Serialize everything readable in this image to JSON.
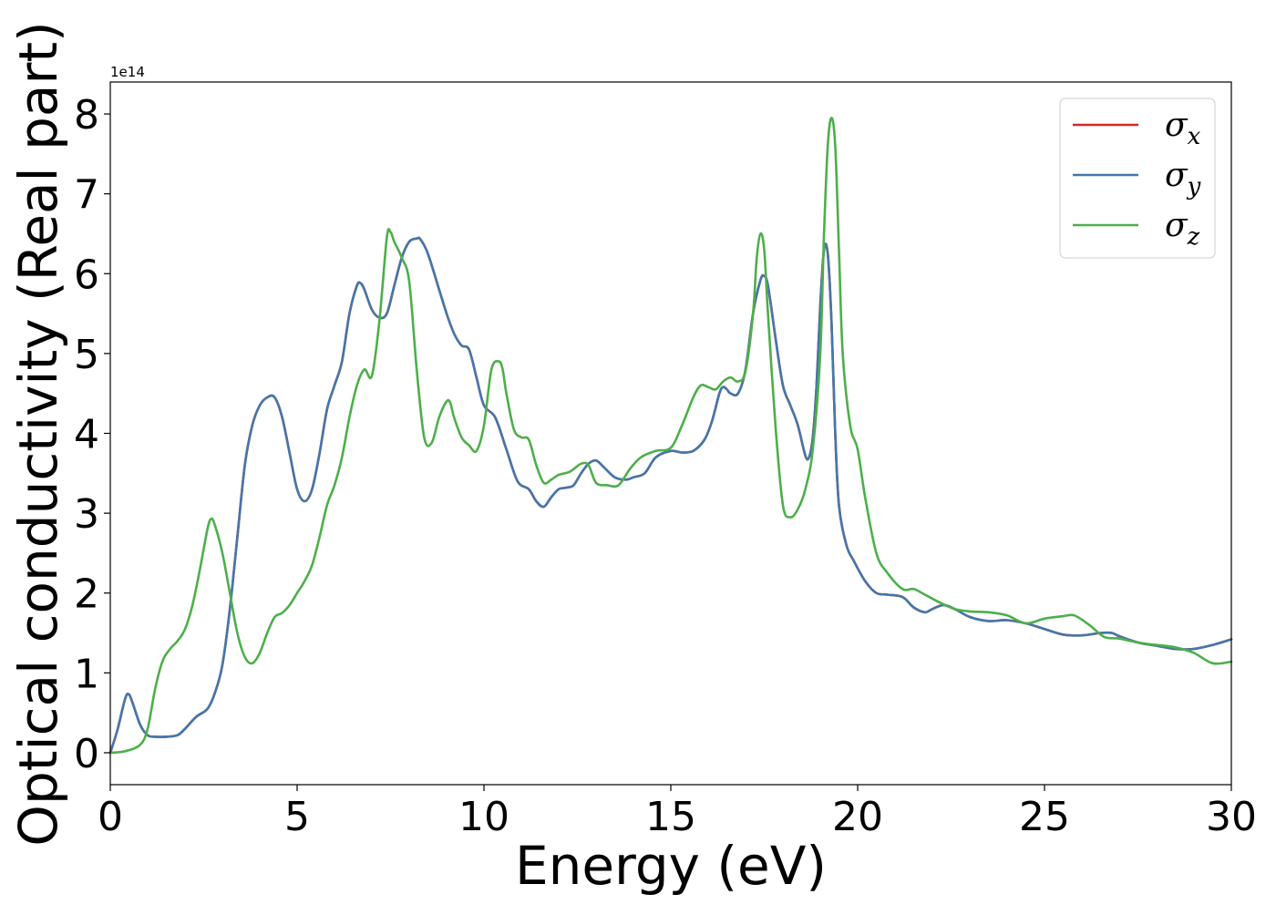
{
  "chart_data": {
    "type": "line",
    "title": "",
    "xlabel": "Energy (eV)",
    "ylabel": "Optical conductivity (Real part)",
    "y_offset_label": "1e14",
    "xlim": [
      0,
      30
    ],
    "ylim": [
      -0.4,
      8.4
    ],
    "xticks": [
      0,
      5,
      10,
      15,
      20,
      25,
      30
    ],
    "yticks": [
      0,
      1,
      2,
      3,
      4,
      5,
      6,
      7,
      8
    ],
    "grid": false,
    "legend_position": "top-right",
    "series": [
      {
        "name": "σx",
        "label_base": "σ",
        "label_sub": "x",
        "color": "#d62728",
        "x": [
          0,
          0.2,
          0.4,
          0.5,
          0.6,
          0.8,
          1.0,
          1.2,
          1.5,
          1.8,
          2.0,
          2.3,
          2.6,
          2.8,
          3.0,
          3.2,
          3.4,
          3.6,
          3.8,
          4.0,
          4.2,
          4.4,
          4.6,
          4.8,
          5.0,
          5.2,
          5.4,
          5.6,
          5.8,
          6.0,
          6.2,
          6.4,
          6.6,
          6.7,
          6.8,
          7.0,
          7.2,
          7.4,
          7.6,
          7.8,
          8.0,
          8.2,
          8.3,
          8.5,
          8.8,
          9.0,
          9.2,
          9.4,
          9.6,
          9.8,
          10.0,
          10.3,
          10.6,
          10.9,
          11.2,
          11.4,
          11.6,
          11.8,
          12.0,
          12.2,
          12.4,
          12.6,
          12.8,
          13.0,
          13.2,
          13.5,
          13.8,
          14.0,
          14.3,
          14.6,
          15.0,
          15.3,
          15.6,
          15.9,
          16.1,
          16.3,
          16.4,
          16.5,
          16.6,
          16.8,
          17.0,
          17.2,
          17.4,
          17.5,
          17.6,
          17.8,
          18.0,
          18.2,
          18.4,
          18.6,
          18.7,
          18.8,
          18.9,
          19.0,
          19.1,
          19.2,
          19.3,
          19.4,
          19.5,
          19.7,
          19.9,
          20.2,
          20.5,
          20.8,
          21.2,
          21.5,
          21.8,
          22.0,
          22.3,
          22.6,
          23.0,
          23.5,
          24.0,
          24.5,
          25.0,
          25.5,
          26.0,
          26.5,
          26.8,
          27.0,
          27.5,
          28.0,
          28.5,
          29.0,
          29.5,
          30.0
        ],
        "y": [
          0.0,
          0.3,
          0.68,
          0.73,
          0.62,
          0.35,
          0.22,
          0.2,
          0.2,
          0.22,
          0.3,
          0.45,
          0.55,
          0.75,
          1.1,
          1.8,
          2.7,
          3.6,
          4.1,
          4.35,
          4.45,
          4.45,
          4.2,
          3.75,
          3.3,
          3.15,
          3.3,
          3.75,
          4.3,
          4.6,
          4.9,
          5.5,
          5.85,
          5.88,
          5.8,
          5.55,
          5.45,
          5.5,
          5.85,
          6.2,
          6.4,
          6.44,
          6.43,
          6.25,
          5.8,
          5.5,
          5.25,
          5.1,
          5.05,
          4.7,
          4.35,
          4.2,
          3.8,
          3.4,
          3.3,
          3.15,
          3.08,
          3.2,
          3.3,
          3.32,
          3.35,
          3.5,
          3.62,
          3.66,
          3.58,
          3.45,
          3.42,
          3.45,
          3.5,
          3.7,
          3.78,
          3.76,
          3.78,
          3.92,
          4.15,
          4.5,
          4.58,
          4.55,
          4.5,
          4.5,
          4.8,
          5.5,
          5.92,
          5.97,
          5.85,
          5.2,
          4.6,
          4.35,
          4.1,
          3.72,
          3.7,
          3.95,
          4.6,
          5.6,
          6.3,
          6.25,
          5.4,
          4.0,
          3.1,
          2.6,
          2.4,
          2.15,
          2.0,
          1.98,
          1.95,
          1.82,
          1.76,
          1.8,
          1.85,
          1.8,
          1.7,
          1.65,
          1.66,
          1.62,
          1.55,
          1.48,
          1.47,
          1.5,
          1.5,
          1.46,
          1.38,
          1.34,
          1.3,
          1.3,
          1.35,
          1.42
        ]
      },
      {
        "name": "σy",
        "label_base": "σ",
        "label_sub": "y",
        "color": "#4477aa",
        "x": [
          0,
          0.2,
          0.4,
          0.5,
          0.6,
          0.8,
          1.0,
          1.2,
          1.5,
          1.8,
          2.0,
          2.3,
          2.6,
          2.8,
          3.0,
          3.2,
          3.4,
          3.6,
          3.8,
          4.0,
          4.2,
          4.4,
          4.6,
          4.8,
          5.0,
          5.2,
          5.4,
          5.6,
          5.8,
          6.0,
          6.2,
          6.4,
          6.6,
          6.7,
          6.8,
          7.0,
          7.2,
          7.4,
          7.6,
          7.8,
          8.0,
          8.2,
          8.3,
          8.5,
          8.8,
          9.0,
          9.2,
          9.4,
          9.6,
          9.8,
          10.0,
          10.3,
          10.6,
          10.9,
          11.2,
          11.4,
          11.6,
          11.8,
          12.0,
          12.2,
          12.4,
          12.6,
          12.8,
          13.0,
          13.2,
          13.5,
          13.8,
          14.0,
          14.3,
          14.6,
          15.0,
          15.3,
          15.6,
          15.9,
          16.1,
          16.3,
          16.4,
          16.5,
          16.6,
          16.8,
          17.0,
          17.2,
          17.4,
          17.5,
          17.6,
          17.8,
          18.0,
          18.2,
          18.4,
          18.6,
          18.7,
          18.8,
          18.9,
          19.0,
          19.1,
          19.2,
          19.3,
          19.4,
          19.5,
          19.7,
          19.9,
          20.2,
          20.5,
          20.8,
          21.2,
          21.5,
          21.8,
          22.0,
          22.3,
          22.6,
          23.0,
          23.5,
          24.0,
          24.5,
          25.0,
          25.5,
          26.0,
          26.5,
          26.8,
          27.0,
          27.5,
          28.0,
          28.5,
          29.0,
          29.5,
          30.0
        ],
        "y": [
          0.0,
          0.3,
          0.68,
          0.73,
          0.62,
          0.35,
          0.22,
          0.2,
          0.2,
          0.22,
          0.3,
          0.45,
          0.55,
          0.75,
          1.1,
          1.8,
          2.7,
          3.6,
          4.1,
          4.35,
          4.45,
          4.45,
          4.2,
          3.75,
          3.3,
          3.15,
          3.3,
          3.75,
          4.3,
          4.6,
          4.9,
          5.5,
          5.85,
          5.88,
          5.8,
          5.55,
          5.45,
          5.5,
          5.85,
          6.2,
          6.4,
          6.44,
          6.43,
          6.25,
          5.8,
          5.5,
          5.25,
          5.1,
          5.05,
          4.7,
          4.35,
          4.2,
          3.8,
          3.4,
          3.3,
          3.15,
          3.08,
          3.2,
          3.3,
          3.32,
          3.35,
          3.5,
          3.62,
          3.66,
          3.58,
          3.45,
          3.42,
          3.45,
          3.5,
          3.7,
          3.78,
          3.76,
          3.78,
          3.92,
          4.15,
          4.5,
          4.58,
          4.55,
          4.5,
          4.5,
          4.8,
          5.5,
          5.92,
          5.97,
          5.85,
          5.2,
          4.6,
          4.35,
          4.1,
          3.72,
          3.7,
          3.95,
          4.6,
          5.6,
          6.3,
          6.25,
          5.4,
          4.0,
          3.1,
          2.6,
          2.4,
          2.15,
          2.0,
          1.98,
          1.95,
          1.82,
          1.76,
          1.8,
          1.85,
          1.8,
          1.7,
          1.65,
          1.66,
          1.62,
          1.55,
          1.48,
          1.47,
          1.5,
          1.5,
          1.46,
          1.38,
          1.34,
          1.3,
          1.3,
          1.35,
          1.42
        ]
      },
      {
        "name": "σz",
        "label_base": "σ",
        "label_sub": "z",
        "color": "#4daf4a",
        "x": [
          0,
          0.4,
          0.8,
          1.0,
          1.2,
          1.4,
          1.6,
          1.8,
          2.0,
          2.2,
          2.4,
          2.6,
          2.7,
          2.8,
          3.0,
          3.2,
          3.4,
          3.6,
          3.8,
          4.0,
          4.2,
          4.4,
          4.6,
          4.8,
          5.0,
          5.2,
          5.4,
          5.6,
          5.8,
          6.0,
          6.2,
          6.4,
          6.6,
          6.8,
          7.0,
          7.2,
          7.4,
          7.5,
          7.6,
          7.8,
          8.0,
          8.2,
          8.4,
          8.6,
          8.8,
          9.0,
          9.1,
          9.2,
          9.4,
          9.6,
          9.8,
          10.0,
          10.2,
          10.4,
          10.5,
          10.6,
          10.8,
          11.0,
          11.2,
          11.4,
          11.6,
          11.8,
          12.0,
          12.3,
          12.6,
          12.8,
          13.0,
          13.3,
          13.6,
          13.9,
          14.2,
          14.6,
          15.0,
          15.3,
          15.6,
          15.8,
          16.0,
          16.2,
          16.4,
          16.6,
          16.8,
          17.0,
          17.2,
          17.3,
          17.4,
          17.5,
          17.6,
          17.8,
          18.0,
          18.2,
          18.4,
          18.6,
          18.8,
          19.0,
          19.1,
          19.2,
          19.3,
          19.4,
          19.5,
          19.6,
          19.8,
          20.0,
          20.2,
          20.5,
          20.8,
          21.2,
          21.5,
          21.8,
          22.2,
          22.6,
          23.0,
          23.5,
          24.0,
          24.5,
          25.0,
          25.5,
          25.8,
          26.2,
          26.6,
          27.0,
          27.5,
          28.0,
          28.5,
          29.0,
          29.5,
          30.0
        ],
        "y": [
          0.0,
          0.02,
          0.1,
          0.3,
          0.8,
          1.15,
          1.3,
          1.4,
          1.55,
          1.85,
          2.3,
          2.8,
          2.93,
          2.85,
          2.5,
          2.0,
          1.5,
          1.2,
          1.12,
          1.25,
          1.5,
          1.7,
          1.75,
          1.85,
          2.0,
          2.15,
          2.35,
          2.7,
          3.1,
          3.35,
          3.7,
          4.2,
          4.6,
          4.8,
          4.72,
          5.4,
          6.45,
          6.52,
          6.4,
          6.2,
          5.9,
          4.8,
          3.95,
          3.88,
          4.2,
          4.4,
          4.38,
          4.2,
          3.95,
          3.85,
          3.78,
          4.1,
          4.8,
          4.9,
          4.8,
          4.5,
          4.05,
          3.95,
          3.92,
          3.6,
          3.38,
          3.42,
          3.48,
          3.52,
          3.62,
          3.6,
          3.38,
          3.35,
          3.35,
          3.55,
          3.7,
          3.78,
          3.82,
          4.1,
          4.45,
          4.6,
          4.58,
          4.55,
          4.65,
          4.7,
          4.65,
          4.78,
          5.5,
          6.2,
          6.5,
          6.3,
          5.5,
          4.1,
          3.1,
          2.95,
          3.05,
          3.3,
          3.8,
          5.0,
          6.5,
          7.6,
          7.95,
          7.6,
          6.3,
          5.0,
          4.1,
          3.8,
          3.2,
          2.5,
          2.25,
          2.05,
          2.05,
          1.98,
          1.88,
          1.8,
          1.77,
          1.76,
          1.72,
          1.62,
          1.68,
          1.71,
          1.72,
          1.6,
          1.45,
          1.43,
          1.38,
          1.35,
          1.32,
          1.25,
          1.12,
          1.14
        ]
      }
    ]
  }
}
